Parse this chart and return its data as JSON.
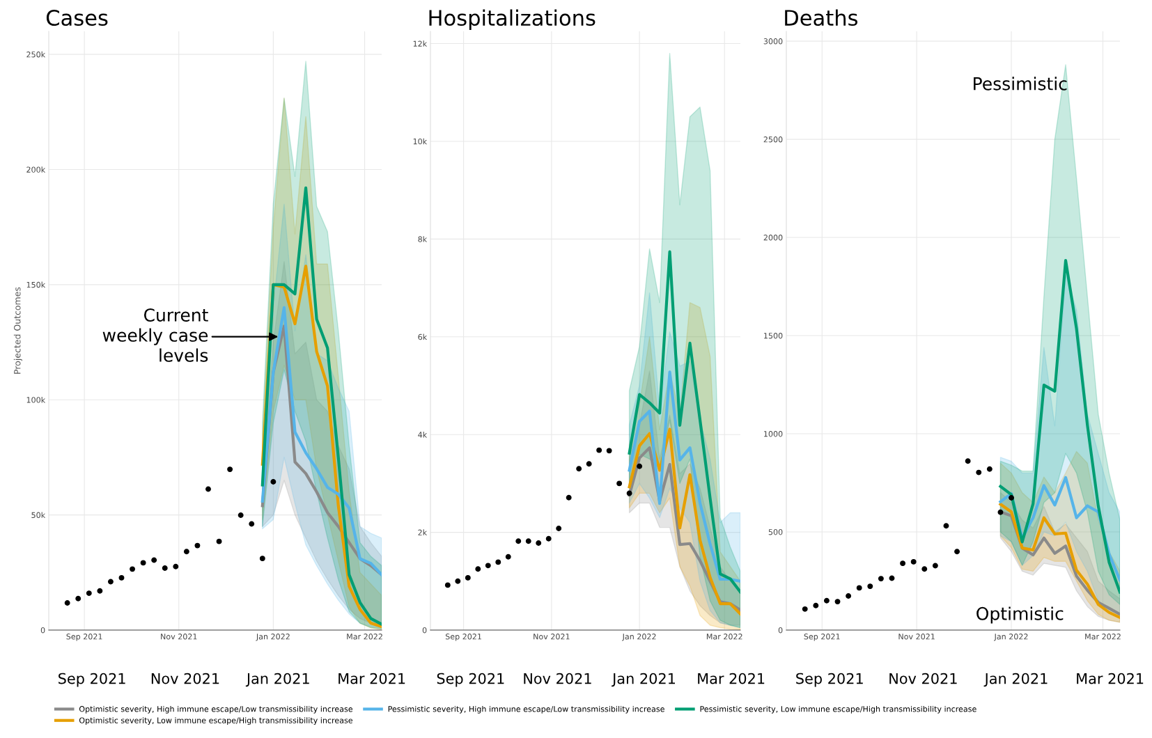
{
  "chart_data": [
    {
      "type": "line",
      "title": "Cases",
      "ylabel": "Projected Outcomes",
      "grid": true,
      "legend": "bottom",
      "xlim": [
        "2021-08-09",
        "2022-03-12"
      ],
      "xticks": [
        {
          "value": "2021-09-01",
          "label": "Sep 2021"
        },
        {
          "value": "2021-11-01",
          "label": "Nov 2021"
        },
        {
          "value": "2022-01-01",
          "label": "Jan 2022"
        },
        {
          "value": "2022-03-01",
          "label": "Mar 2022"
        }
      ],
      "ylim": [
        0,
        260000
      ],
      "yticks": [
        0,
        {
          "value": 50000,
          "label": "50k"
        },
        {
          "value": 100000,
          "label": "100k"
        },
        {
          "value": 150000,
          "label": "150k"
        },
        {
          "value": 200000,
          "label": "200k"
        },
        {
          "value": 250000,
          "label": "250k"
        }
      ],
      "annotations": [
        "Current\nweekly case\nlevels",
        "Sep 2021",
        "Nov 2021",
        "Jan 2021",
        "Mar 2021"
      ],
      "series": [
        {
          "type": "scatter",
          "marker": "circle",
          "color": "#000000",
          "x": [
            "2021-08-21",
            "2021-08-28",
            "2021-09-04",
            "2021-09-11",
            "2021-09-18",
            "2021-09-25",
            "2021-10-02",
            "2021-10-09",
            "2021-10-16",
            "2021-10-23",
            "2021-10-30",
            "2021-11-06",
            "2021-11-13",
            "2021-11-20",
            "2021-11-27",
            "2021-12-04",
            "2021-12-11",
            "2021-12-18",
            "2021-12-25",
            "2022-01-01"
          ],
          "values": [
            11800,
            13700,
            16000,
            17000,
            21000,
            22700,
            26500,
            29200,
            30400,
            26900,
            27600,
            34100,
            36700,
            61200,
            38500,
            69800,
            49900,
            46100,
            31100,
            64400
          ]
        },
        {
          "name": "Optimistic severity, High immune escape/Low transmissibility increase",
          "color": "#8a8a8a",
          "x": [
            "2021-12-25",
            "2022-01-01",
            "2022-01-08",
            "2022-01-15",
            "2022-01-22",
            "2022-01-29",
            "2022-02-05",
            "2022-02-12",
            "2022-02-19",
            "2022-02-26",
            "2022-03-05",
            "2022-03-12"
          ],
          "values": [
            54000,
            112000,
            132000,
            73000,
            68000,
            60000,
            51000,
            45000,
            38000,
            31000,
            28000,
            24000
          ],
          "lower": [
            45000,
            50000,
            65000,
            50000,
            40000,
            30000,
            22000,
            15000,
            9000,
            5000,
            3000,
            2000
          ],
          "upper": [
            62000,
            125000,
            160000,
            120000,
            125000,
            100000,
            95000,
            80000,
            70000,
            45000,
            38000,
            32000
          ]
        },
        {
          "name": "Optimistic severity, Low immune escape/High transmissibility increase",
          "color": "#e69f00",
          "x": [
            "2021-12-25",
            "2022-01-01",
            "2022-01-08",
            "2022-01-15",
            "2022-01-22",
            "2022-01-29",
            "2022-02-05",
            "2022-02-12",
            "2022-02-19",
            "2022-02-26",
            "2022-03-05",
            "2022-03-12"
          ],
          "values": [
            72000,
            150000,
            149000,
            133000,
            158000,
            121000,
            106000,
            54000,
            19000,
            9000,
            3000,
            1500
          ],
          "lower": [
            48000,
            95000,
            115000,
            100000,
            100000,
            70000,
            50000,
            30000,
            10000,
            3000,
            1000,
            300
          ],
          "upper": [
            85000,
            175000,
            231000,
            172000,
            223000,
            159000,
            159000,
            110000,
            60000,
            25000,
            20000,
            15000
          ]
        },
        {
          "name": "Pessimistic severity, High immune escape/Low transmissibility increase",
          "color": "#56b4e9",
          "x": [
            "2021-12-25",
            "2022-01-01",
            "2022-01-08",
            "2022-01-15",
            "2022-01-22",
            "2022-01-29",
            "2022-02-05",
            "2022-02-12",
            "2022-02-19",
            "2022-02-26",
            "2022-03-05",
            "2022-03-12"
          ],
          "values": [
            56000,
            112000,
            140000,
            86000,
            77000,
            70000,
            62000,
            59000,
            53000,
            31000,
            29000,
            24000
          ],
          "lower": [
            44000,
            48000,
            75000,
            55000,
            37000,
            28000,
            20000,
            13000,
            7000,
            3000,
            1500,
            800
          ],
          "upper": [
            65000,
            140000,
            185000,
            130000,
            163000,
            120000,
            117000,
            105000,
            95000,
            45000,
            42000,
            40000
          ]
        },
        {
          "name": "Pessimistic severity, Low immune escape/High transmissibility increase",
          "color": "#009e73",
          "x": [
            "2021-12-25",
            "2022-01-01",
            "2022-01-08",
            "2022-01-15",
            "2022-01-22",
            "2022-01-29",
            "2022-02-05",
            "2022-02-12",
            "2022-02-19",
            "2022-02-26",
            "2022-03-05",
            "2022-03-12"
          ],
          "values": [
            63000,
            150000,
            150000,
            146000,
            192000,
            135000,
            122500,
            75000,
            24000,
            12000,
            5000,
            2500
          ],
          "lower": [
            45000,
            90000,
            113000,
            95000,
            82000,
            60000,
            40000,
            22000,
            8000,
            3000,
            1000,
            500
          ],
          "upper": [
            90000,
            185000,
            231000,
            197000,
            247000,
            184000,
            173000,
            130000,
            80000,
            38000,
            32000,
            28000
          ]
        }
      ]
    },
    {
      "type": "line",
      "title": "Hospitalizations",
      "grid": true,
      "xlim": [
        "2021-08-09",
        "2022-03-12"
      ],
      "xticks": [
        {
          "value": "2021-09-01",
          "label": "Sep 2021"
        },
        {
          "value": "2021-11-01",
          "label": "Nov 2021"
        },
        {
          "value": "2022-01-01",
          "label": "Jan 2022"
        },
        {
          "value": "2022-03-01",
          "label": "Mar 2022"
        }
      ],
      "ylim": [
        0,
        12250
      ],
      "yticks": [
        0,
        {
          "value": 2000,
          "label": "2k"
        },
        {
          "value": 4000,
          "label": "4k"
        },
        {
          "value": 6000,
          "label": "6k"
        },
        {
          "value": 8000,
          "label": "8k"
        },
        {
          "value": 10000,
          "label": "10k"
        },
        {
          "value": 12000,
          "label": "12k"
        }
      ],
      "annotations": [
        "Sep 2021",
        "Nov 2021",
        "Jan 2021",
        "Mar 2021"
      ],
      "series": [
        {
          "type": "scatter",
          "marker": "circle",
          "color": "#000000",
          "x": [
            "2021-08-21",
            "2021-08-28",
            "2021-09-04",
            "2021-09-11",
            "2021-09-18",
            "2021-09-25",
            "2021-10-02",
            "2021-10-09",
            "2021-10-16",
            "2021-10-23",
            "2021-10-30",
            "2021-11-06",
            "2021-11-13",
            "2021-11-20",
            "2021-11-27",
            "2021-12-04",
            "2021-12-11",
            "2021-12-18",
            "2021-12-25",
            "2022-01-01"
          ],
          "values": [
            920,
            1000,
            1070,
            1250,
            1320,
            1390,
            1500,
            1820,
            1820,
            1780,
            1870,
            2080,
            2710,
            3300,
            3400,
            3680,
            3670,
            3000,
            2800,
            3350
          ]
        },
        {
          "name": "Optimistic severity, High immune escape/Low transmissibility increase",
          "color": "#8a8a8a",
          "x": [
            "2021-12-25",
            "2022-01-01",
            "2022-01-08",
            "2022-01-15",
            "2022-01-22",
            "2022-01-29",
            "2022-02-05",
            "2022-02-12",
            "2022-02-19",
            "2022-02-26",
            "2022-03-05",
            "2022-03-12"
          ],
          "values": [
            2760,
            3520,
            3730,
            2640,
            3390,
            1750,
            1770,
            1420,
            1000,
            580,
            540,
            410
          ],
          "lower": [
            2400,
            2600,
            2600,
            2100,
            2100,
            1300,
            800,
            500,
            300,
            150,
            100,
            100
          ],
          "upper": [
            3500,
            4200,
            5300,
            3500,
            4400,
            3200,
            3400,
            2900,
            2100,
            1300,
            1000,
            800
          ]
        },
        {
          "name": "Optimistic severity, Low immune escape/High transmissibility increase",
          "color": "#e69f00",
          "x": [
            "2021-12-25",
            "2022-01-01",
            "2022-01-08",
            "2022-01-15",
            "2022-01-22",
            "2022-01-29",
            "2022-02-05",
            "2022-02-12",
            "2022-02-19",
            "2022-02-26",
            "2022-03-05",
            "2022-03-12"
          ],
          "values": [
            2930,
            3770,
            4020,
            3270,
            4110,
            2090,
            3180,
            1840,
            1080,
            540,
            540,
            330
          ],
          "lower": [
            2500,
            2800,
            2800,
            2400,
            2700,
            1300,
            900,
            300,
            100,
            50,
            20,
            10
          ],
          "upper": [
            3800,
            4600,
            6000,
            4100,
            5300,
            4400,
            6700,
            6600,
            5600,
            1600,
            1300,
            1000
          ]
        },
        {
          "name": "Pessimistic severity, High immune escape/Low transmissibility increase",
          "color": "#56b4e9",
          "x": [
            "2021-12-25",
            "2022-01-01",
            "2022-01-08",
            "2022-01-15",
            "2022-01-22",
            "2022-01-29",
            "2022-02-05",
            "2022-02-12",
            "2022-02-19",
            "2022-02-26",
            "2022-03-05",
            "2022-03-12"
          ],
          "values": [
            3270,
            4270,
            4480,
            2590,
            5280,
            3480,
            3730,
            2600,
            1760,
            1040,
            1040,
            1000
          ],
          "lower": [
            2600,
            3000,
            2700,
            2300,
            2900,
            2500,
            2200,
            1000,
            400,
            150,
            100,
            50
          ],
          "upper": [
            4200,
            5000,
            6900,
            4500,
            6100,
            5400,
            5500,
            4300,
            3500,
            2200,
            2400,
            2400
          ]
        },
        {
          "name": "Pessimistic severity, Low immune escape/High transmissibility increase",
          "color": "#009e73",
          "x": [
            "2021-12-25",
            "2022-01-01",
            "2022-01-08",
            "2022-01-15",
            "2022-01-22",
            "2022-01-29",
            "2022-02-05",
            "2022-02-12",
            "2022-02-19",
            "2022-02-26",
            "2022-03-05",
            "2022-03-12"
          ],
          "values": [
            3620,
            4820,
            4650,
            4440,
            7740,
            4190,
            5870,
            4300,
            2700,
            1150,
            1050,
            780
          ],
          "lower": [
            3000,
            3600,
            3500,
            3300,
            4300,
            3000,
            3500,
            1500,
            600,
            200,
            100,
            50
          ],
          "upper": [
            4900,
            5800,
            7800,
            6700,
            11800,
            8700,
            10500,
            10700,
            9400,
            2300,
            1700,
            1200
          ]
        }
      ]
    },
    {
      "type": "line",
      "title": "Deaths",
      "grid": true,
      "xlim": [
        "2021-08-09",
        "2022-03-12"
      ],
      "xticks": [
        {
          "value": "2021-09-01",
          "label": "Sep 2021"
        },
        {
          "value": "2021-11-01",
          "label": "Nov 2021"
        },
        {
          "value": "2022-01-01",
          "label": "Jan 2022"
        },
        {
          "value": "2022-03-01",
          "label": "Mar 2022"
        }
      ],
      "ylim": [
        0,
        3050
      ],
      "yticks": [
        0,
        500,
        1000,
        1500,
        2000,
        2500,
        3000
      ],
      "annotations": [
        "Pessimistic",
        "Optimistic",
        "Sep 2021",
        "Nov 2021",
        "Jan 2021",
        "Mar 2021"
      ],
      "series": [
        {
          "type": "scatter",
          "marker": "circle",
          "color": "#000000",
          "x": [
            "2021-08-21",
            "2021-08-28",
            "2021-09-04",
            "2021-09-11",
            "2021-09-18",
            "2021-09-25",
            "2021-10-02",
            "2021-10-09",
            "2021-10-16",
            "2021-10-23",
            "2021-10-30",
            "2021-11-06",
            "2021-11-13",
            "2021-11-20",
            "2021-11-27",
            "2021-12-04",
            "2021-12-11",
            "2021-12-18",
            "2021-12-25",
            "2022-01-01"
          ],
          "values": [
            107,
            125,
            150,
            145,
            174,
            215,
            223,
            262,
            264,
            340,
            348,
            311,
            328,
            531,
            400,
            861,
            803,
            820,
            600,
            674
          ]
        },
        {
          "name": "Optimistic severity, High immune escape/Low transmissibility increase",
          "color": "#8a8a8a",
          "x": [
            "2021-12-25",
            "2022-01-01",
            "2022-01-08",
            "2022-01-15",
            "2022-01-22",
            "2022-01-29",
            "2022-02-05",
            "2022-02-12",
            "2022-02-19",
            "2022-02-26",
            "2022-03-05",
            "2022-03-12"
          ],
          "values": [
            602,
            582,
            418,
            383,
            469,
            391,
            428,
            275,
            203,
            141,
            111,
            80
          ],
          "lower": [
            470,
            400,
            300,
            280,
            340,
            330,
            320,
            200,
            120,
            70,
            50,
            40
          ],
          "upper": [
            700,
            650,
            560,
            520,
            630,
            500,
            540,
            470,
            400,
            250,
            200,
            160
          ]
        },
        {
          "name": "Optimistic severity, Low immune escape/High transmissibility increase",
          "color": "#e69f00",
          "x": [
            "2021-12-25",
            "2022-01-01",
            "2022-01-08",
            "2022-01-15",
            "2022-01-22",
            "2022-01-29",
            "2022-02-05",
            "2022-02-12",
            "2022-02-19",
            "2022-02-26",
            "2022-03-05",
            "2022-03-12"
          ],
          "values": [
            641,
            602,
            418,
            408,
            572,
            490,
            494,
            305,
            234,
            131,
            90,
            64
          ],
          "lower": [
            480,
            420,
            310,
            300,
            370,
            350,
            350,
            250,
            150,
            80,
            50,
            40
          ],
          "upper": [
            850,
            800,
            700,
            650,
            780,
            700,
            800,
            910,
            850,
            560,
            400,
            300
          ]
        },
        {
          "name": "Pessimistic severity, High immune escape/Low transmissibility increase",
          "color": "#56b4e9",
          "x": [
            "2021-12-25",
            "2022-01-01",
            "2022-01-08",
            "2022-01-15",
            "2022-01-22",
            "2022-01-29",
            "2022-02-05",
            "2022-02-12",
            "2022-02-19",
            "2022-02-26",
            "2022-03-05",
            "2022-03-12"
          ],
          "values": [
            654,
            695,
            469,
            572,
            736,
            637,
            777,
            572,
            633,
            602,
            387,
            254
          ],
          "lower": [
            480,
            450,
            330,
            380,
            500,
            480,
            550,
            400,
            300,
            150,
            100,
            80
          ],
          "upper": [
            880,
            860,
            800,
            800,
            1440,
            1040,
            1810,
            1630,
            1100,
            900,
            700,
            600
          ]
        },
        {
          "name": "Pessimistic severity, Low immune escape/High transmissibility increase",
          "color": "#009e73",
          "x": [
            "2021-12-25",
            "2022-01-01",
            "2022-01-08",
            "2022-01-15",
            "2022-01-22",
            "2022-01-29",
            "2022-02-05",
            "2022-02-12",
            "2022-02-19",
            "2022-02-26",
            "2022-03-05",
            "2022-03-12"
          ],
          "values": [
            732,
            690,
            449,
            643,
            1248,
            1217,
            1883,
            1535,
            1045,
            633,
            346,
            193
          ],
          "lower": [
            500,
            450,
            330,
            450,
            650,
            700,
            900,
            800,
            600,
            300,
            180,
            130
          ],
          "upper": [
            860,
            840,
            810,
            810,
            1700,
            2500,
            2880,
            2300,
            1700,
            1100,
            800,
            560
          ]
        }
      ]
    }
  ]
}
